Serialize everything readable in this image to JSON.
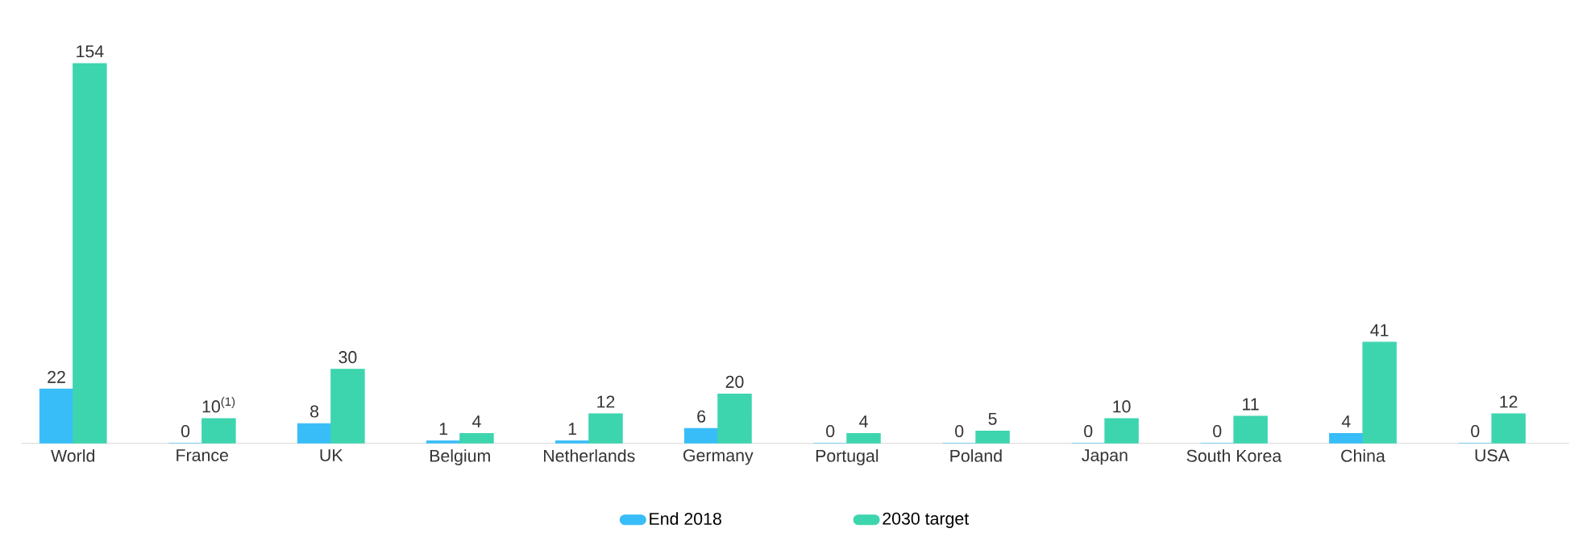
{
  "chart_data": {
    "type": "bar",
    "categories": [
      "World",
      "France",
      "UK",
      "Belgium",
      "Netherlands",
      "Germany",
      "Portugal",
      "Poland",
      "Japan",
      "South Korea",
      "China",
      "USA"
    ],
    "series": [
      {
        "name": "End 2018",
        "color": "#38bdf8",
        "values": [
          22,
          0,
          8,
          1,
          1,
          6,
          0,
          0,
          0,
          0,
          4,
          0
        ],
        "value_labels": [
          "22",
          "0",
          "8",
          "1",
          "1",
          "6",
          "0",
          "0",
          "0",
          "0",
          "4",
          "0"
        ]
      },
      {
        "name": "2030 target",
        "color": "#3dd5ae",
        "values": [
          154,
          10,
          30,
          4,
          12,
          20,
          4,
          5,
          10,
          11,
          41,
          12
        ],
        "value_labels": [
          "154",
          "10$^{(1)}$",
          "30",
          "4",
          "12",
          "20",
          "4",
          "5",
          "10",
          "11",
          "41",
          "12"
        ]
      }
    ],
    "legend": "bottom"
  }
}
